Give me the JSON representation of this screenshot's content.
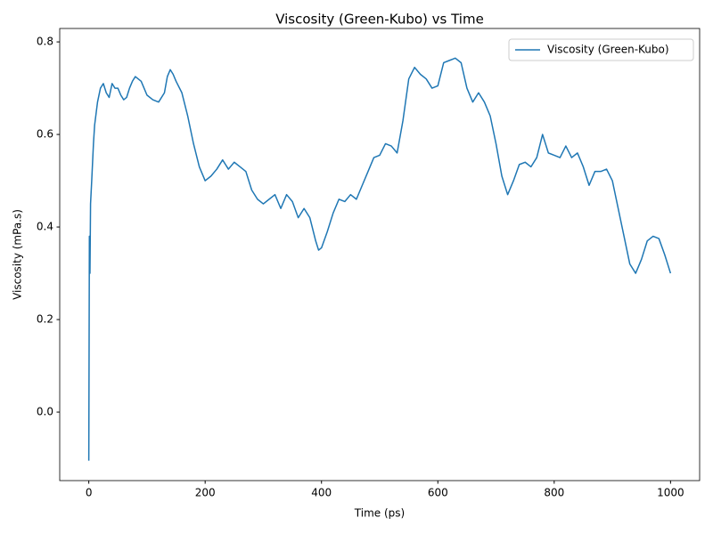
{
  "chart_data": {
    "type": "line",
    "title": "Viscosity (Green-Kubo) vs Time",
    "x_label": "Time (ps)",
    "y_label": "Viscosity (mPa.s)",
    "x": [
      0,
      1,
      2,
      3,
      5,
      8,
      10,
      15,
      20,
      25,
      30,
      35,
      40,
      45,
      50,
      55,
      60,
      65,
      70,
      75,
      80,
      85,
      90,
      95,
      100,
      110,
      120,
      130,
      135,
      140,
      145,
      150,
      160,
      170,
      180,
      190,
      200,
      210,
      220,
      230,
      240,
      250,
      260,
      270,
      280,
      290,
      300,
      310,
      320,
      330,
      340,
      350,
      360,
      370,
      380,
      390,
      395,
      400,
      410,
      420,
      430,
      440,
      450,
      460,
      470,
      480,
      490,
      500,
      510,
      520,
      530,
      540,
      550,
      560,
      570,
      580,
      590,
      600,
      610,
      620,
      630,
      640,
      650,
      660,
      670,
      680,
      690,
      700,
      710,
      720,
      730,
      740,
      750,
      760,
      770,
      780,
      790,
      800,
      810,
      820,
      830,
      840,
      850,
      860,
      870,
      880,
      890,
      900,
      910,
      920,
      930,
      940,
      950,
      960,
      970,
      980,
      990,
      1000
    ],
    "series": [
      {
        "name": "Viscosity (Green-Kubo)",
        "color": "#1f77b4",
        "values": [
          -0.105,
          0.38,
          0.3,
          0.45,
          0.5,
          0.58,
          0.62,
          0.67,
          0.7,
          0.71,
          0.69,
          0.68,
          0.71,
          0.7,
          0.7,
          0.685,
          0.675,
          0.68,
          0.7,
          0.715,
          0.725,
          0.72,
          0.715,
          0.7,
          0.685,
          0.675,
          0.67,
          0.69,
          0.725,
          0.74,
          0.73,
          0.715,
          0.69,
          0.64,
          0.58,
          0.53,
          0.5,
          0.51,
          0.525,
          0.545,
          0.525,
          0.54,
          0.53,
          0.52,
          0.48,
          0.46,
          0.45,
          0.46,
          0.47,
          0.44,
          0.47,
          0.455,
          0.42,
          0.44,
          0.42,
          0.37,
          0.35,
          0.355,
          0.39,
          0.43,
          0.46,
          0.455,
          0.47,
          0.46,
          0.49,
          0.52,
          0.55,
          0.555,
          0.58,
          0.575,
          0.56,
          0.63,
          0.72,
          0.745,
          0.73,
          0.72,
          0.7,
          0.705,
          0.755,
          0.76,
          0.765,
          0.755,
          0.7,
          0.67,
          0.69,
          0.67,
          0.64,
          0.58,
          0.51,
          0.47,
          0.5,
          0.535,
          0.54,
          0.53,
          0.55,
          0.6,
          0.56,
          0.555,
          0.55,
          0.575,
          0.55,
          0.56,
          0.53,
          0.49,
          0.52,
          0.52,
          0.525,
          0.5,
          0.44,
          0.38,
          0.32,
          0.3,
          0.33,
          0.37,
          0.38,
          0.375,
          0.34,
          0.3
        ]
      }
    ],
    "xlim": [
      -50,
      1050
    ],
    "ylim": [
      -0.148,
      0.829
    ],
    "xticks": [
      0,
      200,
      400,
      600,
      800,
      1000
    ],
    "yticks": [
      {
        "value": 0,
        "label": "0.0"
      },
      0.2,
      0.4,
      0.6,
      0.8
    ],
    "legend": "upper right"
  }
}
